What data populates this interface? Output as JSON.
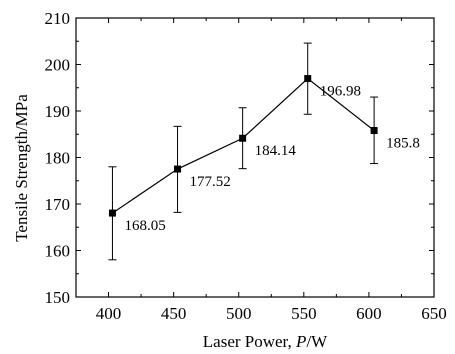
{
  "chart_data": {
    "type": "line",
    "title": "",
    "xlabel": "Laser Power, ",
    "xlabel_italic": "P",
    "xlabel_unit": "/W",
    "ylabel": "Tensile Strength/MPa",
    "xlim": [
      375,
      650
    ],
    "ylim": [
      150,
      210
    ],
    "x_ticks": [
      400,
      450,
      500,
      550,
      600,
      650
    ],
    "y_ticks": [
      150,
      160,
      170,
      180,
      190,
      200,
      210
    ],
    "grid": false,
    "series": [
      {
        "x": [
          403,
          453,
          503,
          553,
          604
        ],
        "y": [
          168.05,
          177.52,
          184.14,
          196.98,
          185.8
        ],
        "err_low": [
          158.0,
          168.2,
          177.6,
          189.3,
          178.7
        ],
        "err_high": [
          178.0,
          186.7,
          190.7,
          204.6,
          193.0
        ],
        "labels": [
          "168.05",
          "177.52",
          "184.14",
          "196.98",
          "185.8"
        ],
        "color": "#000000",
        "marker": "square"
      }
    ]
  }
}
